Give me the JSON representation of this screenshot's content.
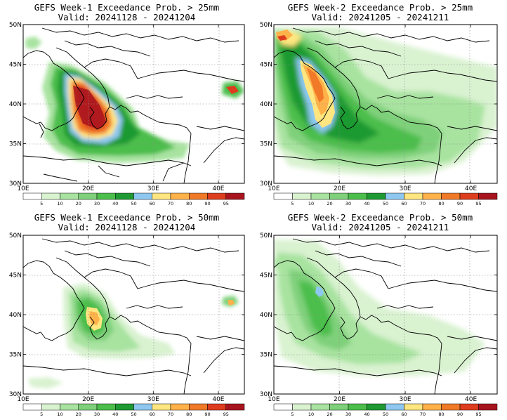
{
  "legend": {
    "ticks": [
      "5",
      "10",
      "20",
      "30",
      "40",
      "50",
      "60",
      "70",
      "80",
      "90",
      "95"
    ],
    "colors": [
      "#ffffff",
      "#d9f2d0",
      "#a8e3a0",
      "#7fd07a",
      "#4cbe4c",
      "#1f9a33",
      "#8ec8f0",
      "#ffe680",
      "#ffb24a",
      "#f07a28",
      "#dd3c1e",
      "#a8141e"
    ]
  },
  "axes": {
    "x_labels": [
      "10E",
      "20E",
      "30E",
      "40E"
    ],
    "y_labels": [
      "50N",
      "45N",
      "40N",
      "35N",
      "30N"
    ]
  },
  "panels": [
    {
      "line1": "GEFS Week-1 Exceedance Prob. > 25mm",
      "line2": "Valid: 20241128 - 20241204"
    },
    {
      "line1": "GEFS Week-2 Exceedance Prob. > 25mm",
      "line2": "Valid: 20241205 - 20241211"
    },
    {
      "line1": "GEFS Week-1 Exceedance Prob. > 50mm",
      "line2": "Valid: 20241128 - 20241204"
    },
    {
      "line1": "GEFS Week-2 Exceedance Prob. > 50mm",
      "line2": "Valid: 20241205 - 20241211"
    }
  ]
}
